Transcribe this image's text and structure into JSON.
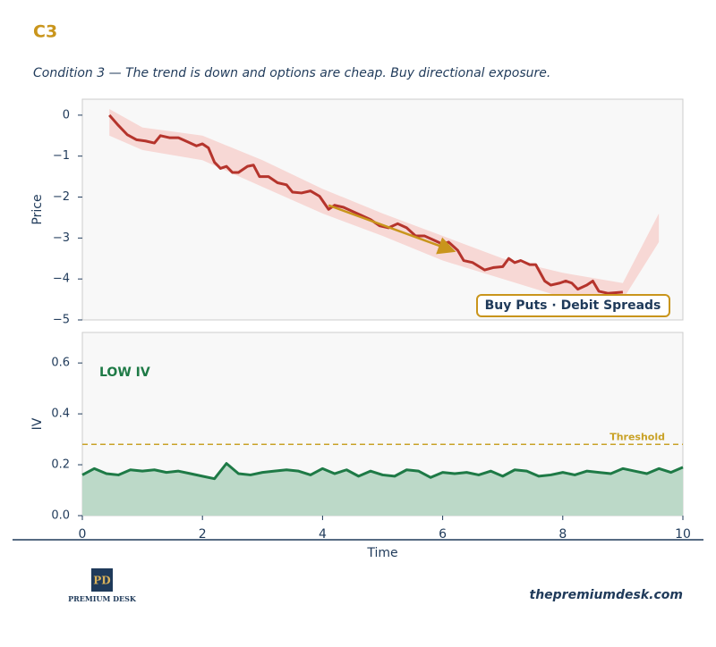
{
  "header": {
    "title": "C3",
    "subtitle": "Condition 3 — The trend is down and options are cheap. Buy directional exposure."
  },
  "chart_data": [
    {
      "type": "line",
      "ylabel": "Price",
      "xlim": [
        0,
        10
      ],
      "ylim": [
        -5,
        0.39
      ],
      "yticks": [
        {
          "value": 0,
          "label": "0"
        },
        {
          "value": -1,
          "label": "−1"
        },
        {
          "value": -2,
          "label": "−2"
        },
        {
          "value": -3,
          "label": "−3"
        },
        {
          "value": -4,
          "label": "−4"
        },
        {
          "value": -5,
          "label": "−5"
        }
      ],
      "band": {
        "color": "#f7c3be",
        "x": [
          0.45,
          1,
          2,
          3,
          4,
          5,
          6,
          7,
          8,
          9,
          9.6
        ],
        "upper": [
          0.15,
          -0.3,
          -0.5,
          -1.1,
          -1.8,
          -2.4,
          -2.95,
          -3.5,
          -3.85,
          -4.1,
          -2.4
        ],
        "lower": [
          -0.5,
          -0.85,
          -1.1,
          -1.75,
          -2.4,
          -2.95,
          -3.55,
          -4.0,
          -4.45,
          -4.5,
          -3.1
        ]
      },
      "series": [
        {
          "color": "#b5342c",
          "x": [
            0.45,
            0.6,
            0.75,
            0.9,
            1.05,
            1.2,
            1.3,
            1.45,
            1.6,
            1.75,
            1.9,
            2.0,
            2.1,
            2.2,
            2.3,
            2.4,
            2.5,
            2.6,
            2.75,
            2.85,
            2.95,
            3.1,
            3.25,
            3.4,
            3.5,
            3.65,
            3.8,
            3.95,
            4.1,
            4.2,
            4.35,
            4.5,
            4.65,
            4.8,
            4.95,
            5.1,
            5.25,
            5.4,
            5.55,
            5.7,
            5.85,
            6.0,
            6.1,
            6.25,
            6.35,
            6.5,
            6.7,
            6.85,
            7.0,
            7.1,
            7.2,
            7.3,
            7.45,
            7.55,
            7.7,
            7.8,
            7.95,
            8.05,
            8.15,
            8.25,
            8.4,
            8.5,
            8.6,
            8.75,
            9.0
          ],
          "values": [
            0.0,
            -0.25,
            -0.48,
            -0.6,
            -0.63,
            -0.68,
            -0.5,
            -0.55,
            -0.55,
            -0.65,
            -0.75,
            -0.7,
            -0.8,
            -1.15,
            -1.3,
            -1.25,
            -1.4,
            -1.4,
            -1.25,
            -1.22,
            -1.5,
            -1.5,
            -1.65,
            -1.7,
            -1.88,
            -1.9,
            -1.85,
            -1.98,
            -2.3,
            -2.2,
            -2.25,
            -2.35,
            -2.45,
            -2.55,
            -2.7,
            -2.75,
            -2.65,
            -2.75,
            -2.95,
            -2.95,
            -3.05,
            -3.15,
            -3.1,
            -3.3,
            -3.55,
            -3.6,
            -3.78,
            -3.72,
            -3.7,
            -3.5,
            -3.6,
            -3.55,
            -3.65,
            -3.65,
            -4.05,
            -4.15,
            -4.1,
            -4.05,
            -4.1,
            -4.25,
            -4.15,
            -4.05,
            -4.3,
            -4.35,
            -4.32
          ]
        }
      ],
      "arrow": {
        "color": "#c9951c",
        "x": [
          4.1,
          6.15
        ],
        "y": [
          -2.2,
          -3.3
        ]
      },
      "annotation": "Buy Puts · Debit Spreads"
    },
    {
      "type": "area",
      "ylabel": "IV",
      "xlabel": "Time",
      "xlim": [
        0,
        10
      ],
      "ylim": [
        0,
        0.72
      ],
      "xticks": [
        0,
        2,
        4,
        6,
        8,
        10
      ],
      "yticks": [
        {
          "value": 0,
          "label": "0.0"
        },
        0.2,
        0.4,
        0.6
      ],
      "series": [
        {
          "color": "#1e7a46",
          "fill": "#bcd9c8",
          "x": [
            0,
            0.2,
            0.4,
            0.6,
            0.8,
            1,
            1.2,
            1.4,
            1.6,
            1.8,
            2,
            2.2,
            2.4,
            2.6,
            2.8,
            3,
            3.2,
            3.4,
            3.6,
            3.8,
            4,
            4.2,
            4.4,
            4.6,
            4.8,
            5,
            5.2,
            5.4,
            5.6,
            5.8,
            6,
            6.2,
            6.4,
            6.6,
            6.8,
            7,
            7.2,
            7.4,
            7.6,
            7.8,
            8,
            8.2,
            8.4,
            8.6,
            8.8,
            9,
            9.2,
            9.4,
            9.6,
            9.8,
            10
          ],
          "values": [
            0.16,
            0.185,
            0.165,
            0.16,
            0.18,
            0.175,
            0.18,
            0.17,
            0.175,
            0.165,
            0.155,
            0.145,
            0.205,
            0.165,
            0.16,
            0.17,
            0.175,
            0.18,
            0.175,
            0.16,
            0.185,
            0.165,
            0.18,
            0.155,
            0.175,
            0.16,
            0.155,
            0.18,
            0.175,
            0.15,
            0.17,
            0.165,
            0.17,
            0.16,
            0.175,
            0.155,
            0.18,
            0.175,
            0.155,
            0.16,
            0.17,
            0.16,
            0.175,
            0.17,
            0.165,
            0.185,
            0.175,
            0.165,
            0.185,
            0.17,
            0.19
          ]
        }
      ],
      "threshold": {
        "value": 0.28,
        "label": "Threshold",
        "color": "#c9a227"
      },
      "annotation": "LOW IV"
    }
  ],
  "footer": {
    "logo": "PREMIUM DESK",
    "url": "thepremiumdesk.com"
  }
}
